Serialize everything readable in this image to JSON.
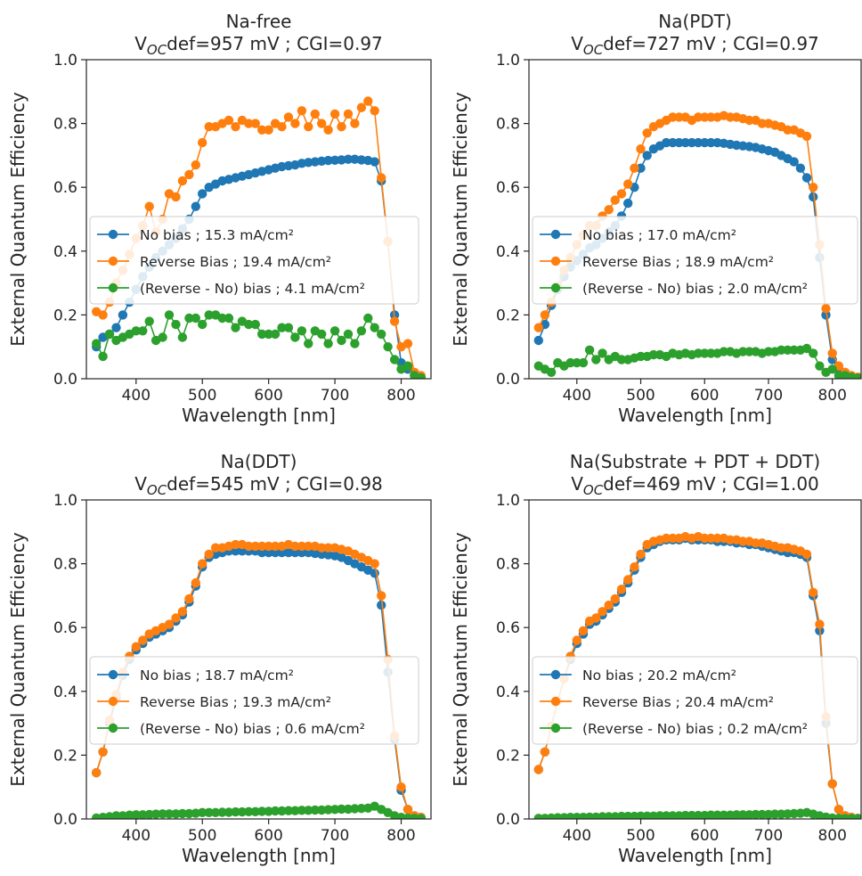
{
  "chart_data": [
    {
      "type": "line",
      "title": "Na-free",
      "subtitle": {
        "pre": "V",
        "sub": "OC",
        "post": "def=957 mV ; CGI=0.97"
      },
      "xlabel": "Wavelength [nm]",
      "ylabel": "External Quantum Efficiency",
      "xlim": [
        325,
        845
      ],
      "ylim": [
        0.0,
        1.0
      ],
      "xticks": [
        400,
        500,
        600,
        700,
        800
      ],
      "yticks": [
        0.0,
        0.2,
        0.4,
        0.6,
        0.8,
        1.0
      ],
      "grid": false,
      "legend": "center-left",
      "x": [
        340,
        350,
        360,
        370,
        380,
        390,
        400,
        410,
        420,
        430,
        440,
        450,
        460,
        470,
        480,
        490,
        500,
        510,
        520,
        530,
        540,
        550,
        560,
        570,
        580,
        590,
        600,
        610,
        620,
        630,
        640,
        650,
        660,
        670,
        680,
        690,
        700,
        710,
        720,
        730,
        740,
        750,
        760,
        770,
        780,
        790,
        800,
        810,
        820,
        830
      ],
      "series": [
        {
          "name": "No bias ; 15.3 mA/cm²",
          "color": "#1f77b4",
          "values": [
            0.1,
            0.13,
            0.14,
            0.16,
            0.2,
            0.24,
            0.28,
            0.32,
            0.35,
            0.38,
            0.4,
            0.42,
            0.44,
            0.47,
            0.5,
            0.54,
            0.58,
            0.6,
            0.61,
            0.62,
            0.625,
            0.63,
            0.635,
            0.64,
            0.645,
            0.65,
            0.655,
            0.66,
            0.665,
            0.668,
            0.67,
            0.675,
            0.678,
            0.68,
            0.682,
            0.684,
            0.685,
            0.686,
            0.688,
            0.688,
            0.686,
            0.684,
            0.68,
            0.62,
            0.43,
            0.2,
            0.05,
            0.03,
            0.01,
            0.005
          ]
        },
        {
          "name": "Reverse Bias ; 19.4 mA/cm²",
          "color": "#ff7f0e",
          "values": [
            0.21,
            0.2,
            0.24,
            0.3,
            0.34,
            0.39,
            0.44,
            0.48,
            0.54,
            0.46,
            0.5,
            0.58,
            0.57,
            0.62,
            0.64,
            0.67,
            0.74,
            0.79,
            0.79,
            0.8,
            0.81,
            0.79,
            0.81,
            0.8,
            0.8,
            0.78,
            0.78,
            0.8,
            0.79,
            0.82,
            0.8,
            0.84,
            0.79,
            0.83,
            0.8,
            0.78,
            0.83,
            0.79,
            0.83,
            0.8,
            0.85,
            0.87,
            0.84,
            0.63,
            0.43,
            0.18,
            0.1,
            0.11,
            0.02,
            0.01
          ]
        },
        {
          "name": "(Reverse - No) bias ; 4.1 mA/cm²",
          "color": "#2ca02c",
          "values": [
            0.11,
            0.07,
            0.14,
            0.12,
            0.13,
            0.14,
            0.15,
            0.15,
            0.18,
            0.12,
            0.13,
            0.2,
            0.17,
            0.13,
            0.19,
            0.19,
            0.17,
            0.2,
            0.2,
            0.19,
            0.19,
            0.16,
            0.18,
            0.17,
            0.17,
            0.14,
            0.14,
            0.14,
            0.16,
            0.16,
            0.13,
            0.15,
            0.11,
            0.15,
            0.14,
            0.11,
            0.15,
            0.12,
            0.14,
            0.11,
            0.15,
            0.19,
            0.16,
            0.14,
            0.1,
            0.06,
            0.03,
            0.04,
            0.01,
            0.003
          ]
        }
      ]
    },
    {
      "type": "line",
      "title": "Na(PDT)",
      "subtitle": {
        "pre": "V",
        "sub": "OC",
        "post": "def=727 mV ; CGI=0.97"
      },
      "xlabel": "Wavelength [nm]",
      "ylabel": "External Quantum Efficiency",
      "xlim": [
        325,
        845
      ],
      "ylim": [
        0.0,
        1.0
      ],
      "xticks": [
        400,
        500,
        600,
        700,
        800
      ],
      "yticks": [
        0.0,
        0.2,
        0.4,
        0.6,
        0.8,
        1.0
      ],
      "grid": false,
      "legend": "center-left",
      "x": [
        340,
        350,
        360,
        370,
        380,
        390,
        400,
        410,
        420,
        430,
        440,
        450,
        460,
        470,
        480,
        490,
        500,
        510,
        520,
        530,
        540,
        550,
        560,
        570,
        580,
        590,
        600,
        610,
        620,
        630,
        640,
        650,
        660,
        670,
        680,
        690,
        700,
        710,
        720,
        730,
        740,
        750,
        760,
        770,
        780,
        790,
        800,
        810,
        820,
        830,
        840
      ],
      "series": [
        {
          "name": "No bias ; 17.0 mA/cm²",
          "color": "#1f77b4",
          "values": [
            0.12,
            0.17,
            0.23,
            0.28,
            0.32,
            0.35,
            0.37,
            0.39,
            0.41,
            0.42,
            0.44,
            0.46,
            0.48,
            0.51,
            0.55,
            0.6,
            0.66,
            0.7,
            0.72,
            0.73,
            0.74,
            0.74,
            0.74,
            0.74,
            0.74,
            0.74,
            0.74,
            0.74,
            0.74,
            0.738,
            0.735,
            0.732,
            0.73,
            0.728,
            0.725,
            0.72,
            0.715,
            0.71,
            0.7,
            0.69,
            0.68,
            0.66,
            0.63,
            0.57,
            0.38,
            0.2,
            0.06,
            0.03,
            0.01,
            0.005,
            0.003
          ]
        },
        {
          "name": "Reverse Bias ; 18.9 mA/cm²",
          "color": "#ff7f0e",
          "values": [
            0.16,
            0.2,
            0.24,
            0.29,
            0.34,
            0.38,
            0.42,
            0.45,
            0.48,
            0.48,
            0.51,
            0.53,
            0.56,
            0.58,
            0.61,
            0.66,
            0.72,
            0.77,
            0.79,
            0.8,
            0.81,
            0.82,
            0.82,
            0.82,
            0.81,
            0.82,
            0.82,
            0.82,
            0.82,
            0.825,
            0.82,
            0.82,
            0.815,
            0.81,
            0.81,
            0.8,
            0.8,
            0.795,
            0.79,
            0.78,
            0.78,
            0.77,
            0.76,
            0.6,
            0.42,
            0.22,
            0.08,
            0.04,
            0.02,
            0.01,
            0.005
          ]
        },
        {
          "name": "(Reverse - No) bias ; 2.0 mA/cm²",
          "color": "#2ca02c",
          "values": [
            0.04,
            0.03,
            0.02,
            0.05,
            0.04,
            0.05,
            0.05,
            0.05,
            0.09,
            0.06,
            0.08,
            0.06,
            0.07,
            0.06,
            0.06,
            0.065,
            0.07,
            0.07,
            0.075,
            0.075,
            0.07,
            0.08,
            0.075,
            0.08,
            0.075,
            0.08,
            0.08,
            0.08,
            0.08,
            0.085,
            0.085,
            0.08,
            0.085,
            0.085,
            0.085,
            0.08,
            0.085,
            0.085,
            0.09,
            0.09,
            0.09,
            0.09,
            0.095,
            0.08,
            0.04,
            0.02,
            0.03,
            0.01,
            0.01,
            0.005,
            0.002
          ]
        }
      ]
    },
    {
      "type": "line",
      "title": "Na(DDT)",
      "subtitle": {
        "pre": "V",
        "sub": "OC",
        "post": "def=545 mV ; CGI=0.98"
      },
      "xlabel": "Wavelength [nm]",
      "ylabel": "External Quantum Efficiency",
      "xlim": [
        325,
        845
      ],
      "ylim": [
        0.0,
        1.0
      ],
      "xticks": [
        400,
        500,
        600,
        700,
        800
      ],
      "yticks": [
        0.0,
        0.2,
        0.4,
        0.6,
        0.8,
        1.0
      ],
      "grid": false,
      "legend": "center-left",
      "x": [
        340,
        350,
        360,
        370,
        380,
        390,
        400,
        410,
        420,
        430,
        440,
        450,
        460,
        470,
        480,
        490,
        500,
        510,
        520,
        530,
        540,
        550,
        560,
        570,
        580,
        590,
        600,
        610,
        620,
        630,
        640,
        650,
        660,
        670,
        680,
        690,
        700,
        710,
        720,
        730,
        740,
        750,
        760,
        770,
        780,
        790,
        800,
        810,
        820,
        830
      ],
      "series": [
        {
          "name": "No bias ; 18.7 mA/cm²",
          "color": "#1f77b4",
          "values": [
            0.145,
            0.21,
            0.3,
            0.38,
            0.45,
            0.5,
            0.53,
            0.55,
            0.57,
            0.58,
            0.59,
            0.6,
            0.62,
            0.64,
            0.68,
            0.73,
            0.79,
            0.82,
            0.83,
            0.835,
            0.84,
            0.84,
            0.84,
            0.84,
            0.84,
            0.835,
            0.835,
            0.835,
            0.835,
            0.835,
            0.835,
            0.835,
            0.835,
            0.832,
            0.83,
            0.828,
            0.825,
            0.82,
            0.81,
            0.8,
            0.79,
            0.78,
            0.77,
            0.67,
            0.46,
            0.25,
            0.09,
            0.03,
            0.01,
            0.005
          ]
        },
        {
          "name": "Reverse Bias ; 19.3 mA/cm²",
          "color": "#ff7f0e",
          "values": [
            0.145,
            0.21,
            0.31,
            0.39,
            0.46,
            0.51,
            0.54,
            0.56,
            0.58,
            0.59,
            0.6,
            0.61,
            0.63,
            0.65,
            0.69,
            0.74,
            0.8,
            0.83,
            0.85,
            0.85,
            0.855,
            0.86,
            0.86,
            0.855,
            0.855,
            0.855,
            0.855,
            0.855,
            0.855,
            0.86,
            0.855,
            0.855,
            0.855,
            0.855,
            0.85,
            0.85,
            0.85,
            0.845,
            0.84,
            0.83,
            0.82,
            0.81,
            0.8,
            0.7,
            0.5,
            0.26,
            0.1,
            0.03,
            0.01,
            0.005
          ]
        },
        {
          "name": "(Reverse - No) bias ; 0.6 mA/cm²",
          "color": "#2ca02c",
          "values": [
            0.003,
            0.005,
            0.007,
            0.01,
            0.01,
            0.012,
            0.013,
            0.013,
            0.014,
            0.015,
            0.016,
            0.016,
            0.016,
            0.017,
            0.017,
            0.018,
            0.02,
            0.02,
            0.02,
            0.021,
            0.021,
            0.022,
            0.022,
            0.023,
            0.023,
            0.024,
            0.024,
            0.025,
            0.025,
            0.026,
            0.026,
            0.027,
            0.027,
            0.028,
            0.028,
            0.029,
            0.03,
            0.031,
            0.031,
            0.032,
            0.033,
            0.034,
            0.04,
            0.03,
            0.02,
            0.01,
            0.005,
            0.003,
            0.002,
            0.001
          ]
        }
      ]
    },
    {
      "type": "line",
      "title": "Na(Substrate + PDT + DDT)",
      "subtitle": {
        "pre": "V",
        "sub": "OC",
        "post": "def=469 mV ; CGI=1.00"
      },
      "xlabel": "Wavelength [nm]",
      "ylabel": "External Quantum Efficiency",
      "xlim": [
        325,
        845
      ],
      "ylim": [
        0.0,
        1.0
      ],
      "xticks": [
        400,
        500,
        600,
        700,
        800
      ],
      "yticks": [
        0.0,
        0.2,
        0.4,
        0.6,
        0.8,
        1.0
      ],
      "grid": false,
      "legend": "center-left",
      "x": [
        340,
        350,
        360,
        370,
        380,
        390,
        400,
        410,
        420,
        430,
        440,
        450,
        460,
        470,
        480,
        490,
        500,
        510,
        520,
        530,
        540,
        550,
        560,
        570,
        580,
        590,
        600,
        610,
        620,
        630,
        640,
        650,
        660,
        670,
        680,
        690,
        700,
        710,
        720,
        730,
        740,
        750,
        760,
        770,
        780,
        790,
        800,
        810,
        820,
        830,
        840
      ],
      "series": [
        {
          "name": "No bias ; 20.2 mA/cm²",
          "color": "#1f77b4",
          "values": [
            0.155,
            0.21,
            0.29,
            0.37,
            0.44,
            0.5,
            0.55,
            0.58,
            0.61,
            0.62,
            0.64,
            0.66,
            0.68,
            0.71,
            0.74,
            0.78,
            0.82,
            0.85,
            0.86,
            0.87,
            0.875,
            0.875,
            0.875,
            0.88,
            0.875,
            0.875,
            0.875,
            0.875,
            0.87,
            0.87,
            0.87,
            0.865,
            0.865,
            0.86,
            0.86,
            0.855,
            0.85,
            0.845,
            0.84,
            0.835,
            0.835,
            0.83,
            0.82,
            0.7,
            0.59,
            0.3,
            0.11,
            0.03,
            0.01,
            0.005,
            0.002
          ]
        },
        {
          "name": "Reverse Bias ; 20.4 mA/cm²",
          "color": "#ff7f0e",
          "values": [
            0.155,
            0.21,
            0.29,
            0.37,
            0.44,
            0.51,
            0.56,
            0.59,
            0.62,
            0.63,
            0.65,
            0.67,
            0.69,
            0.72,
            0.75,
            0.79,
            0.83,
            0.86,
            0.87,
            0.875,
            0.88,
            0.88,
            0.88,
            0.885,
            0.88,
            0.885,
            0.88,
            0.88,
            0.88,
            0.88,
            0.875,
            0.875,
            0.87,
            0.87,
            0.865,
            0.865,
            0.86,
            0.855,
            0.85,
            0.85,
            0.845,
            0.84,
            0.83,
            0.71,
            0.61,
            0.32,
            0.11,
            0.03,
            0.01,
            0.005,
            0.002
          ]
        },
        {
          "name": "(Reverse - No) bias ; 0.2 mA/cm²",
          "color": "#2ca02c",
          "values": [
            0.002,
            0.002,
            0.003,
            0.004,
            0.004,
            0.005,
            0.005,
            0.005,
            0.006,
            0.006,
            0.007,
            0.007,
            0.007,
            0.008,
            0.008,
            0.008,
            0.009,
            0.009,
            0.009,
            0.01,
            0.01,
            0.01,
            0.01,
            0.011,
            0.011,
            0.011,
            0.011,
            0.012,
            0.012,
            0.012,
            0.012,
            0.013,
            0.013,
            0.013,
            0.014,
            0.014,
            0.014,
            0.015,
            0.015,
            0.016,
            0.017,
            0.018,
            0.02,
            0.015,
            0.01,
            0.006,
            0.003,
            0.002,
            0.001,
            0.001,
            0.001
          ]
        }
      ]
    }
  ]
}
